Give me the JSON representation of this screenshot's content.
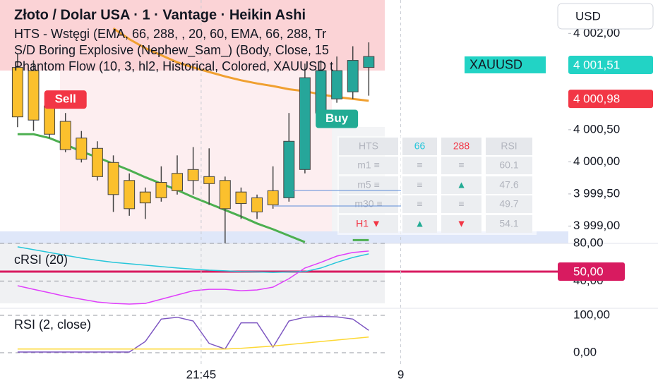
{
  "chart_data": [
    {
      "type": "candlestick",
      "title": "Złoto / Dolar USA · 1 · Vantage · Heikin Ashi",
      "indicators": [
        "HTS - Wstęgi (EMA, 66, 288, , 20, 60, EMA, 66, 288, Tr",
        "S/D Boring Explosive (Nephew_Sam_) (Body, Close, 15",
        "Phantom Flow (10, 3, hl2, Historical, Colored, XAUUSD t"
      ],
      "categories": [
        null,
        null,
        null,
        null,
        null,
        null,
        null,
        null,
        null,
        null,
        null,
        null,
        null,
        null,
        null,
        null,
        null,
        null,
        null,
        null,
        null,
        null,
        null
      ],
      "open": [
        4001.47,
        4001.42,
        4000.87,
        4000.63,
        4000.37,
        4000.21,
        3999.99,
        3999.71,
        3999.53,
        3999.68,
        3999.82,
        3999.88,
        3999.77,
        3999.71,
        3999.53,
        3999.44,
        3999.55,
        3999.44,
        3999.88,
        4000.76,
        4000.98,
        4001.09,
        4001.47
      ],
      "high": [
        4001.69,
        4001.58,
        4000.98,
        4000.76,
        4000.48,
        4000.32,
        4000.1,
        3999.82,
        3999.6,
        3999.93,
        4000.1,
        4000.23,
        4000.21,
        3999.77,
        3999.6,
        3999.49,
        3999.93,
        4000.76,
        4001.53,
        4001.58,
        4001.64,
        4001.8,
        4001.86
      ],
      "low": [
        4000.54,
        4000.48,
        4000.37,
        4000.15,
        3999.99,
        3999.71,
        3999.22,
        3999.16,
        3999.11,
        3999.38,
        3999.49,
        3999.49,
        3999.33,
        3998.73,
        3999.11,
        3999.11,
        3999.27,
        3999.38,
        3999.82,
        4000.7,
        4000.92,
        4000.98,
        4001.03
      ],
      "close": [
        4000.7,
        4000.65,
        4000.43,
        4000.19,
        4000.04,
        3999.77,
        3999.49,
        3999.27,
        3999.36,
        3999.44,
        3999.55,
        3999.71,
        3999.66,
        3999.27,
        3999.35,
        3999.22,
        3999.33,
        4000.32,
        4001.31,
        4001.42,
        4001.42,
        4001.58,
        4001.64
      ],
      "up_color": "#26a69a",
      "down_color": "#fbc02d",
      "lines": [
        {
          "color": "#4caf50",
          "values": [
            4000.43,
            4000.43,
            4000.37,
            4000.27,
            4000.16,
            4000.07,
            3999.97,
            3999.87,
            3999.76,
            3999.66,
            3999.56,
            3999.45,
            3999.35,
            3999.25,
            3999.15,
            3999.04,
            3998.95,
            3998.85,
            3998.75,
            null,
            null,
            3998.78,
            3998.78
          ]
        },
        {
          "color": "#f0a030",
          "values": [
            null,
            null,
            null,
            null,
            null,
            null,
            4002.08,
            4001.91,
            4001.77,
            4001.66,
            4001.55,
            4001.47,
            4001.4,
            4001.33,
            4001.27,
            4001.22,
            4001.18,
            4001.13,
            4001.1,
            4001.05,
            4001.01,
            4000.98,
            4000.95
          ]
        }
      ],
      "annotations": [
        {
          "text": "Sell",
          "x": 3,
          "y": 4000.98,
          "color": "#f23645"
        },
        {
          "text": "Buy",
          "x": 20,
          "y": 4000.68,
          "color": "#22ab94"
        }
      ],
      "price_labels": [
        {
          "value": 4001.51,
          "label": "4 001,51",
          "symbol": "XAUUSD",
          "color": "#22d3c5"
        },
        {
          "value": 4000.98,
          "label": "4 000,98",
          "color": "#f23645"
        }
      ],
      "ylim": [
        3998.73,
        4002.52
      ],
      "yticks": [
        {
          "value": 3999,
          "label": "3 999,00"
        },
        {
          "value": 3999.5,
          "label": "3 999,50"
        },
        {
          "value": 4000,
          "label": "4 000,00"
        },
        {
          "value": 4000.5,
          "label": "4 000,50"
        },
        {
          "value": 4002,
          "label": "4 002,00"
        }
      ],
      "xlim": [
        -1.1,
        34.5
      ],
      "xticks": [
        {
          "value": 11.5,
          "label": "21:45"
        },
        {
          "value": 24,
          "label": "9"
        }
      ]
    },
    {
      "type": "line",
      "title": "cRSI (20)",
      "series": [
        {
          "color": "#e040fb",
          "values": [
            35.0,
            31.2,
            27.5,
            23.7,
            20.7,
            17.7,
            16.2,
            15.5,
            16.2,
            20.7,
            25.2,
            29.7,
            31.2,
            31.2,
            29.7,
            30.5,
            33.5,
            42.5,
            53.8,
            59.8,
            66.5,
            70.3,
            71.8
          ]
        },
        {
          "color": "#26c6da",
          "values": [
            76.3,
            73.3,
            70.3,
            67.3,
            64.3,
            62.0,
            59.8,
            58.3,
            56.8,
            55.3,
            53.8,
            52.6,
            51.5,
            50.8,
            50.0,
            49.6,
            49.2,
            49.6,
            50.0,
            53.8,
            59.8,
            65.0,
            68.8
          ]
        }
      ],
      "level": {
        "value": 50,
        "label": "50,00",
        "color": "#d81b60"
      },
      "ylim": [
        11.0,
        80.0
      ],
      "yticks": [
        {
          "value": 80,
          "label": "80,00"
        },
        {
          "value": 40,
          "label": "40,00"
        }
      ]
    },
    {
      "type": "line",
      "title": "RSI (2, close)",
      "series": [
        {
          "color": "#7e57c2",
          "values": [
            2,
            2,
            2,
            2,
            2,
            2,
            2,
            2,
            30,
            90,
            95,
            85,
            25,
            10,
            80,
            80,
            15,
            85,
            95,
            97,
            96,
            90,
            60
          ]
        },
        {
          "color": "#fdd835",
          "values": [
            10,
            10,
            10,
            10,
            10,
            10,
            10,
            10,
            10,
            10,
            10,
            10,
            10,
            10,
            12,
            15,
            18,
            22,
            26,
            30,
            34,
            38,
            42
          ]
        }
      ],
      "ylim": [
        -37.7,
        118.9
      ],
      "yticks": [
        {
          "value": 100,
          "label": "100,00"
        },
        {
          "value": 0,
          "label": "0,00"
        }
      ]
    }
  ],
  "ui": {
    "currency": "USD",
    "table": {
      "header": [
        "HTS",
        "66",
        "288",
        "RSI"
      ],
      "rows": [
        [
          "m1 ≡",
          "≡",
          "≡",
          60.1
        ],
        [
          "m5 ≡",
          "≡",
          "▲",
          47.6
        ],
        [
          "m30 ≡",
          "≡",
          "≡",
          49.7
        ],
        [
          "H1 ▼",
          "▲",
          "▼",
          54.1
        ]
      ]
    }
  }
}
